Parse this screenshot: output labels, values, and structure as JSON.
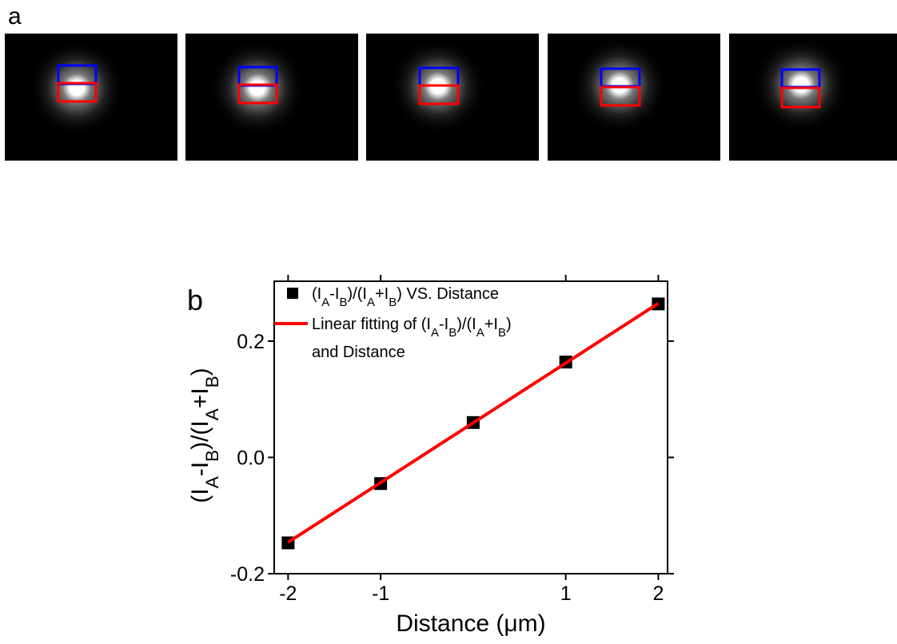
{
  "panel_a": {
    "label": "a"
  },
  "chart_data": {
    "type": "scatter_fit",
    "panel_label": "b",
    "x_label": "Distance (μm)",
    "y_label": "(IA-IB)/(IA+IB)",
    "xlim": [
      -2.15,
      2.1
    ],
    "ylim": [
      -0.2,
      0.303
    ],
    "xticks": [
      -2,
      -1,
      1,
      2
    ],
    "yticks": [
      -0.2,
      {
        "value": 0.0,
        "label": "0.0"
      },
      0.2
    ],
    "series": [
      {
        "name": "(IA-IB)/(IA+IB) VS. Distance",
        "kind": "points",
        "color": "#000000",
        "x": [
          -2,
          -1,
          0,
          1,
          2
        ],
        "values": [
          -0.147,
          -0.045,
          0.06,
          0.164,
          0.264
        ]
      },
      {
        "name": "Linear fitting of (IA-IB)/(IA+IB) and Distance",
        "kind": "line",
        "color": "#ff0000",
        "x": [
          -2,
          2
        ],
        "values": [
          -0.146,
          0.265
        ]
      }
    ]
  }
}
